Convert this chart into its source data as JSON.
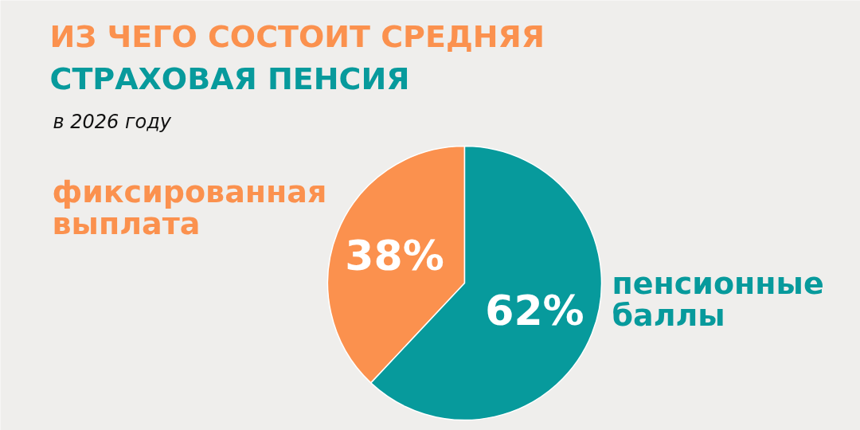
{
  "chart_data": {
    "type": "pie",
    "title": "ИЗ ЧЕГО СОСТОИТ СРЕДНЯЯ СТРАХОВАЯ ПЕНСИЯ",
    "subtitle": "в 2026 году",
    "categories": [
      "фиксированная выплата",
      "пенсионные баллы"
    ],
    "values": [
      38,
      62
    ],
    "colors": [
      "#fb914e",
      "#079a9c"
    ],
    "value_labels": [
      "38%",
      "62%"
    ]
  }
}
